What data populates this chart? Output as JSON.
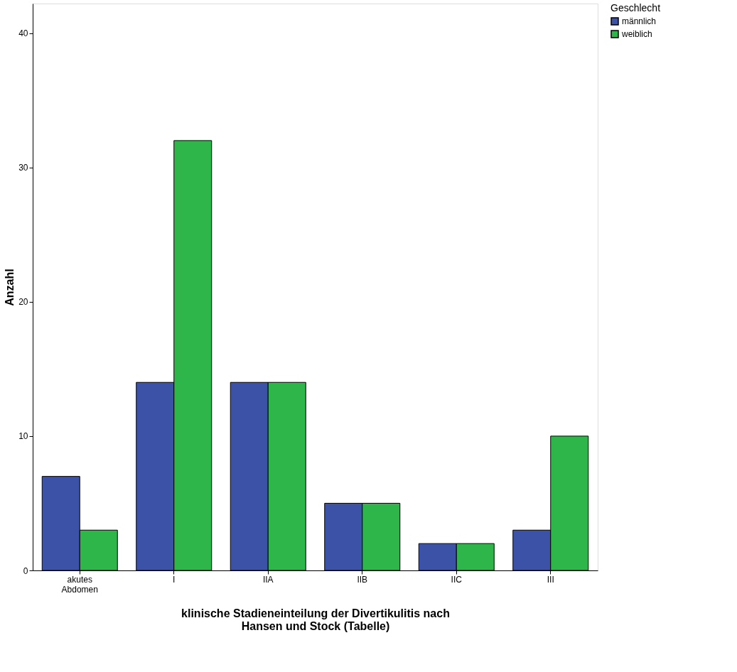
{
  "chart_data": {
    "type": "bar",
    "xlabel": "klinische Stadieneinteilung der Divertikulitis nach Hansen und Stock (Tabelle)",
    "ylabel": "Anzahl",
    "legend_title": "Geschlecht",
    "categories": [
      "akutes Abdomen",
      "I",
      "IIA",
      "IIB",
      "IIC",
      "III"
    ],
    "series": [
      {
        "name": "männlich",
        "color": "#3c52a6",
        "values": [
          7,
          14,
          14,
          5,
          2,
          3
        ]
      },
      {
        "name": "weiblich",
        "color": "#2fb64a",
        "values": [
          3,
          32,
          14,
          5,
          2,
          10
        ]
      }
    ],
    "ylim": [
      0,
      42.2
    ],
    "yticks": [
      0,
      10,
      20,
      30,
      40
    ],
    "grid": false,
    "legend": "top right"
  }
}
